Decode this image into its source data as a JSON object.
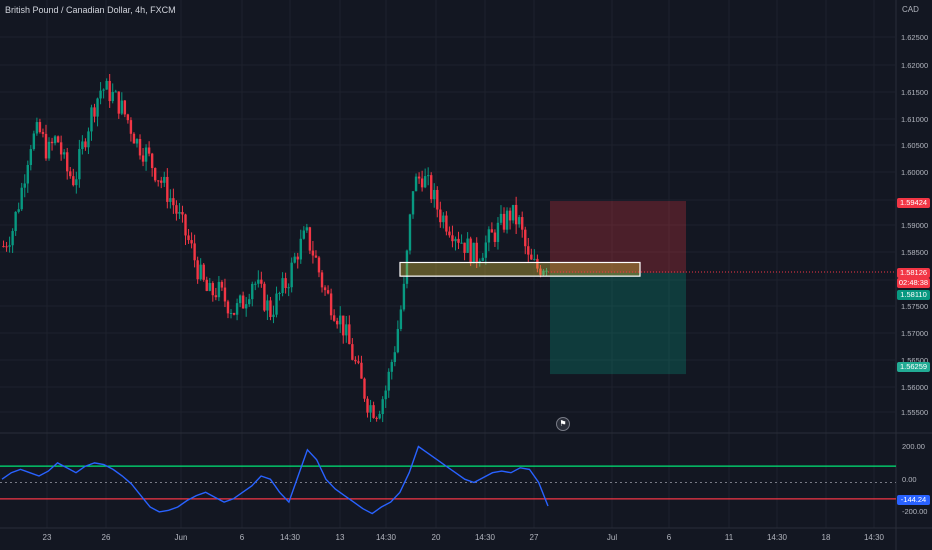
{
  "header": {
    "title": "British Pound / Canadian Dollar, 4h, FXCM",
    "currency": "CAD"
  },
  "price_axis": {
    "ticks": [
      "1.62500",
      "1.62000",
      "1.61500",
      "1.61000",
      "1.60500",
      "1.60000",
      "1.59500",
      "1.59000",
      "1.58500",
      "1.58000",
      "1.57500",
      "1.57000",
      "1.56500",
      "1.56000",
      "1.55500"
    ],
    "tag_stop": "1.59424",
    "tag_last": "1.58126",
    "tag_countdown": "02:48:38",
    "tag_entry": "1.58110",
    "tag_target": "1.56259"
  },
  "time_axis": {
    "labels": [
      "23",
      "26",
      "Jun",
      "6",
      "14:30",
      "13",
      "14:30",
      "20",
      "14:30",
      "27",
      "Jul",
      "6",
      "11",
      "14:30",
      "18",
      "14:30"
    ]
  },
  "oscillator": {
    "labels": [
      "200.00",
      "0.00",
      "-200.00"
    ],
    "current": "-144.24"
  },
  "chart_data": {
    "type": "candlestick",
    "symbol": "British Pound / Canadian Dollar",
    "interval": "4h",
    "ylim": [
      1.552,
      1.631
    ],
    "position": {
      "entry": 1.5811,
      "stop": 1.59424,
      "target": 1.56259
    },
    "zone": [
      1.5805,
      1.583
    ],
    "close_path": [
      1.586,
      1.589,
      1.596,
      1.605,
      1.607,
      1.603,
      1.606,
      1.6,
      1.598,
      1.605,
      1.611,
      1.615,
      1.614,
      1.612,
      1.609,
      1.605,
      1.603,
      1.6,
      1.597,
      1.594,
      1.59,
      1.586,
      1.581,
      1.577,
      1.578,
      1.576,
      1.574,
      1.576,
      1.58,
      1.577,
      1.574,
      1.577,
      1.58,
      1.585,
      1.588,
      1.584,
      1.578,
      1.575,
      1.572,
      1.567,
      1.562,
      1.557,
      1.556,
      1.56,
      1.568,
      1.578,
      1.597,
      1.599,
      1.596,
      1.592,
      1.59,
      1.588,
      1.586,
      1.584,
      1.586,
      1.588,
      1.59,
      1.592,
      1.59,
      1.583,
      1.582,
      1.583
    ],
    "cci": [
      20,
      60,
      80,
      60,
      40,
      70,
      120,
      90,
      60,
      100,
      120,
      110,
      80,
      40,
      -10,
      -80,
      -150,
      -180,
      -170,
      -150,
      -110,
      -80,
      -60,
      -90,
      -120,
      -100,
      -60,
      -20,
      40,
      20,
      -60,
      -120,
      40,
      200,
      140,
      20,
      -40,
      -80,
      -120,
      -160,
      -190,
      -150,
      -120,
      -60,
      60,
      220,
      180,
      140,
      100,
      60,
      20,
      0,
      30,
      60,
      70,
      60,
      90,
      80,
      0,
      -144
    ]
  }
}
